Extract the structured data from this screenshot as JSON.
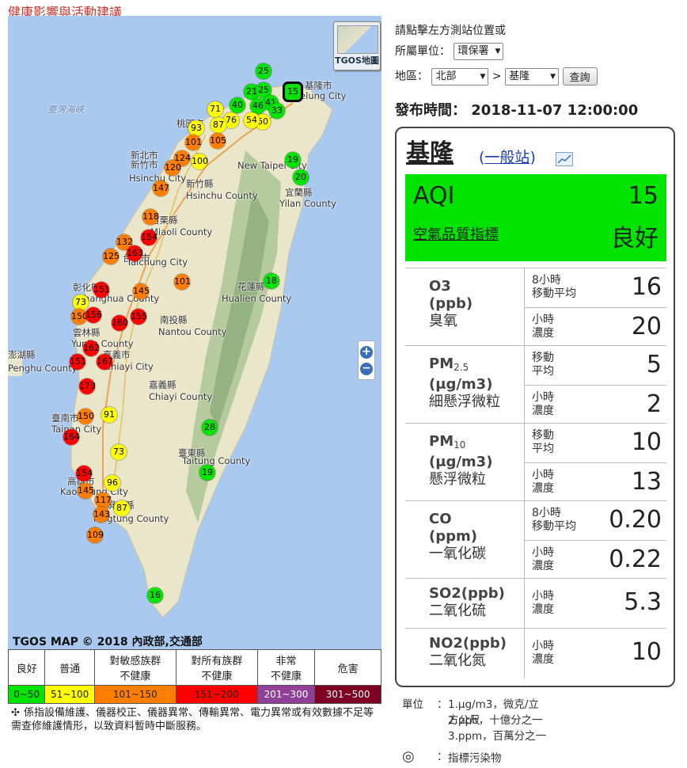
{
  "header": {
    "health_link": "健康影響與活動建議"
  },
  "map": {
    "tgos_button": "TGOS地圖",
    "zoom_in": "+",
    "zoom_out": "−",
    "copyright": "TGOS MAP © 2018 內政部,交通部",
    "places": [
      "基隆市",
      "Keelung City",
      "桃園市",
      "新北市",
      "New Taipei City",
      "新竹市",
      "Hsinchu City",
      "新竹縣",
      "Hsinchu County",
      "宜蘭縣",
      "Yilan County",
      "苗栗縣",
      "Miaoli County",
      "台中市",
      "Taichung City",
      "彰化縣",
      "Changhua County",
      "花蓮縣",
      "Hualien County",
      "南投縣",
      "Nantou County",
      "雲林縣",
      "Yunlin County",
      "嘉義市",
      "Chiayi City",
      "嘉義縣",
      "Chiayi County",
      "澎湖縣",
      "Penghu County",
      "臺南市",
      "Tainan City",
      "臺東縣",
      "Taitung County",
      "高雄市",
      "Kaohsiung City",
      "屏東縣",
      "Pingtung County",
      "臺灣海峽"
    ],
    "markers": [
      "25",
      "21",
      "25",
      "15",
      "41",
      "40",
      "46",
      "33",
      "60",
      "54",
      "76",
      "87",
      "93",
      "71",
      "101",
      "105",
      "124",
      "100",
      "19",
      "120",
      "20",
      "147",
      "118",
      "154",
      "132",
      "125",
      "163",
      "101",
      "145",
      "18",
      "151",
      "73",
      "150",
      "156",
      "155",
      "160",
      "162",
      "151",
      "167",
      "173",
      "91",
      "150",
      "164",
      "28",
      "73",
      "19",
      "154",
      "145",
      "96",
      "117",
      "87",
      "143",
      "109",
      "16"
    ]
  },
  "legend": {
    "levels": [
      {
        "label": "良好",
        "range": "0~50",
        "color": "#00e400"
      },
      {
        "label": "普通",
        "range": "51~100",
        "color": "#ffff00"
      },
      {
        "label": "對敏感族群\n不健康",
        "range": "101~150",
        "color": "#ff7e00"
      },
      {
        "label": "對所有族群\n不健康",
        "range": "151~200",
        "color": "#ff0000"
      },
      {
        "label": "非常\n不健康",
        "range": "201~300",
        "color": "#8f3f97"
      },
      {
        "label": "危害",
        "range": "301~500",
        "color": "#7e0023"
      }
    ],
    "note": "係指設備維護、儀器校正、儀器異常、傳輸異常、電力異常或有效數據不足等需查修維護情形，以致資料暫時中斷服務。"
  },
  "controls": {
    "prompt": "請點擊左方測站位置或",
    "agency_label": "所屬單位：",
    "agency_value": "環保署",
    "region_label": "地區：",
    "region_value": "北部",
    "gt": ">",
    "station_value": "基隆",
    "query_button": "查詢"
  },
  "publish": {
    "label": "發布時間：",
    "time": "2018-11-07 12:00:00"
  },
  "station": {
    "name": "基隆",
    "type_prefix": "(",
    "type": "一般站",
    "type_suffix": ")",
    "aqi_label": "AQI",
    "aqi_value": "15",
    "aqi_sub": "空氣品質指標",
    "status": "良好",
    "status_color": "#00e400"
  },
  "pollutants": [
    {
      "name": "O3",
      "sub": "",
      "unit": "(ppb)",
      "cn": "臭氧",
      "r1_label": "8小時\n移動平均",
      "r1_value": "16",
      "r2_label": "小時\n濃度",
      "r2_value": "20"
    },
    {
      "name": "PM",
      "sub": "2.5",
      "unit": "(μg/m3)",
      "cn": "細懸浮微粒",
      "r1_label": "移動\n平均",
      "r1_value": "5",
      "r2_label": "小時\n濃度",
      "r2_value": "2"
    },
    {
      "name": "PM",
      "sub": "10",
      "unit": "(μg/m3)",
      "cn": "懸浮微粒",
      "r1_label": "移動\n平均",
      "r1_value": "10",
      "r2_label": "小時\n濃度",
      "r2_value": "13"
    },
    {
      "name": "CO",
      "sub": "",
      "unit": "(ppm)",
      "cn": "一氧化碳",
      "r1_label": "8小時\n移動平均",
      "r1_value": "0.20",
      "r2_label": "小時\n濃度",
      "r2_value": "0.22"
    },
    {
      "name": "SO2(ppb)",
      "sub": "",
      "unit": "",
      "cn": "二氧化硫",
      "r1_label": "小時\n濃度",
      "r1_value": "5.3",
      "r2_label": "",
      "r2_value": ""
    },
    {
      "name": "NO2(ppb)",
      "sub": "",
      "unit": "",
      "cn": "二氧化氮",
      "r1_label": "小時\n濃度",
      "r1_value": "10",
      "r2_label": "",
      "r2_value": ""
    }
  ],
  "units": {
    "label": "單位",
    "colon": "：",
    "lines": [
      "1.μg/m3，微克/立方公尺",
      "2.ppb，十億分之一",
      "3.ppm，百萬分之一"
    ],
    "marker_symbol": "◎",
    "marker_text": "指標污染物"
  }
}
